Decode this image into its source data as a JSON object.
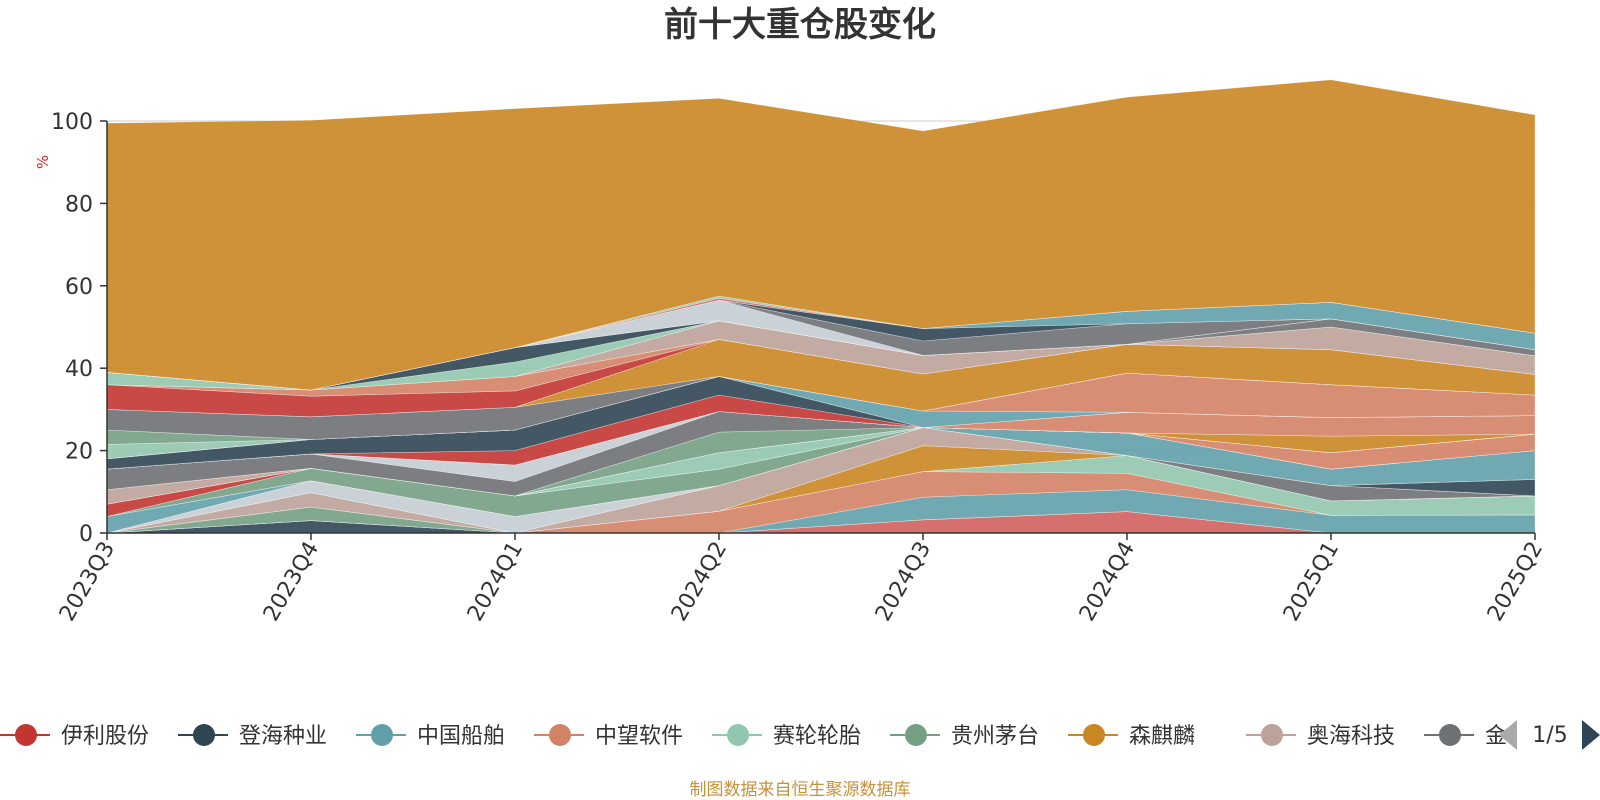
{
  "chart_data": {
    "type": "area",
    "stacked": true,
    "title": "前十大重仓股变化",
    "ylabel": "%",
    "xlabel": "",
    "ylim": [
      0,
      100
    ],
    "yticks": [
      0,
      20,
      40,
      60,
      80,
      100
    ],
    "grid": true,
    "legend_position": "bottom",
    "categories": [
      "2023Q3",
      "2023Q4",
      "2024Q1",
      "2024Q2",
      "2024Q3",
      "2024Q4",
      "2025Q1",
      "2025Q2"
    ],
    "series": [
      {
        "name": "伊利股份",
        "color": "#d1605e",
        "values": [
          0,
          0,
          0,
          0,
          3.2,
          5.2,
          0,
          0
        ]
      },
      {
        "name": "登海种业",
        "color": "#2f4554",
        "values": [
          0,
          3.0,
          0,
          0,
          0,
          0,
          0,
          0
        ]
      },
      {
        "name": "中国船舶",
        "color": "#61a0a8",
        "values": [
          0,
          0,
          0,
          0,
          5.5,
          5.3,
          4.3,
          4.4
        ]
      },
      {
        "name": "中望软件",
        "color": "#d48265",
        "values": [
          0,
          0,
          0,
          5.3,
          6.2,
          4.0,
          0,
          0
        ]
      },
      {
        "name": "赛轮轮胎",
        "color": "#91c7ae",
        "values": [
          0,
          0,
          0,
          0,
          0,
          4.3,
          3.5,
          4.6
        ]
      },
      {
        "name": "贵州茅台",
        "color": "#749f83",
        "values": [
          0,
          3.3,
          0,
          0,
          0,
          0,
          0,
          0
        ]
      },
      {
        "name": "森麒麟",
        "color": "#ca8622",
        "values": [
          0,
          0,
          0,
          0,
          6.3,
          0,
          0,
          0
        ]
      },
      {
        "name": "奥海科技",
        "color": "#bda29a",
        "values": [
          0,
          3.5,
          0,
          6.2,
          4.4,
          0,
          0,
          0
        ]
      },
      {
        "name": "金",
        "color": "#6e7074",
        "values": [
          0,
          0,
          0,
          0,
          0,
          0,
          3.7,
          0
        ]
      },
      {
        "color": "#c4ccd3",
        "values": [
          0,
          2.9,
          4.0,
          0,
          0,
          0,
          0,
          0
        ]
      },
      {
        "color": "#2f4554",
        "values": [
          0,
          0,
          0,
          0,
          0,
          0,
          0,
          4.0
        ]
      },
      {
        "color": "#61a0a8",
        "values": [
          4.0,
          0,
          0,
          0,
          0,
          0,
          0,
          0
        ]
      },
      {
        "color": "#61a0a8",
        "values": [
          0,
          0,
          0,
          0,
          0,
          5.5,
          4.0,
          7.0
        ]
      },
      {
        "color": "#749f83",
        "values": [
          0,
          3.0,
          5.0,
          4.0,
          0,
          0,
          0,
          0
        ]
      },
      {
        "color": "#c23531",
        "values": [
          3.0,
          0,
          0,
          0,
          0,
          0,
          0,
          0
        ]
      },
      {
        "color": "#91c7ae",
        "values": [
          0,
          0,
          0,
          4.0,
          0,
          0,
          0,
          0
        ]
      },
      {
        "color": "#d48265",
        "values": [
          0,
          0,
          0,
          0,
          0,
          0,
          4.0,
          4.0
        ]
      },
      {
        "color": "#bda29a",
        "values": [
          3.5,
          0,
          0,
          0,
          0,
          0,
          0,
          0
        ]
      },
      {
        "color": "#749f83",
        "values": [
          0,
          0,
          0,
          5.0,
          0,
          0,
          0,
          0
        ]
      },
      {
        "color": "#6e7074",
        "values": [
          5.0,
          3.5,
          3.5,
          5.0,
          0,
          0,
          0,
          0
        ]
      },
      {
        "color": "#c4ccd3",
        "values": [
          0,
          0,
          4.0,
          0,
          0,
          0,
          0,
          0
        ]
      },
      {
        "color": "#ca8622",
        "values": [
          0,
          0,
          0,
          0,
          0,
          0,
          4.0,
          0
        ]
      },
      {
        "color": "#d48265",
        "values": [
          0,
          0,
          0,
          0,
          0,
          5.0,
          4.5,
          4.5
        ]
      },
      {
        "color": "#c23531",
        "values": [
          0,
          0,
          3.5,
          4.0,
          0,
          0,
          0,
          0
        ]
      },
      {
        "color": "#2f4554",
        "values": [
          2.5,
          3.5,
          5.0,
          4.5,
          0,
          0,
          0,
          0
        ]
      },
      {
        "color": "#61a0a8",
        "values": [
          0,
          0,
          0,
          0,
          4.0,
          0,
          0,
          0
        ]
      },
      {
        "color": "#d48265",
        "values": [
          0,
          0,
          0,
          0,
          0,
          9.5,
          8.0,
          5.0
        ]
      },
      {
        "color": "#91c7ae",
        "values": [
          3.5,
          0,
          0,
          0,
          0,
          0,
          0,
          0
        ]
      },
      {
        "color": "#749f83",
        "values": [
          3.5,
          0,
          0,
          0,
          0,
          0,
          0,
          0
        ]
      },
      {
        "color": "#6e7074",
        "values": [
          5.0,
          5.5,
          5.5,
          0,
          0,
          0,
          0,
          0
        ]
      },
      {
        "color": "#ca8622",
        "values": [
          0,
          0,
          0,
          9.0,
          9.0,
          7.0,
          8.5,
          5.0
        ]
      },
      {
        "color": "#c23531",
        "values": [
          6.0,
          5.0,
          4.0,
          0,
          0,
          0,
          0,
          0
        ]
      },
      {
        "color": "#d48265",
        "values": [
          0,
          1.5,
          3.5,
          0,
          0,
          0,
          0,
          0
        ]
      },
      {
        "color": "#bda29a",
        "values": [
          0,
          0,
          0,
          4.5,
          4.5,
          0,
          5.5,
          4.5
        ]
      },
      {
        "color": "#91c7ae",
        "values": [
          3.0,
          0,
          3.5,
          0,
          0,
          0,
          0,
          0
        ]
      },
      {
        "color": "#2f4554",
        "values": [
          0,
          0,
          3.5,
          0,
          0,
          0,
          0,
          0
        ]
      },
      {
        "color": "#6e7074",
        "values": [
          0,
          0,
          0,
          0,
          0,
          0,
          2.0,
          1.5
        ]
      },
      {
        "color": "#c4ccd3",
        "values": [
          0,
          0,
          0,
          5.0,
          0,
          0,
          0,
          0
        ]
      },
      {
        "color": "#6e7074",
        "values": [
          0,
          0,
          0,
          0,
          3.5,
          5.0,
          0,
          0
        ]
      },
      {
        "color": "#2f4554",
        "values": [
          0,
          0,
          0,
          0,
          3.0,
          0,
          0,
          0
        ]
      },
      {
        "color": "#61a0a8",
        "values": [
          0,
          0,
          0,
          0,
          0,
          3.0,
          4.0,
          4.0
        ]
      },
      {
        "color": "#d1605e",
        "values": [
          0,
          0,
          0,
          0.5,
          0,
          0,
          0,
          0
        ]
      },
      {
        "color": "#91c7ae",
        "values": [
          0,
          0,
          0,
          0.5,
          0,
          0,
          0,
          0
        ]
      },
      {
        "color": "#ca8622",
        "values": [
          60.5,
          65.5,
          58.0,
          48.0,
          48.0,
          52.0,
          54.0,
          53.0
        ]
      }
    ]
  },
  "legend": {
    "items": [
      {
        "name": "伊利股份",
        "color": "#c23531"
      },
      {
        "name": "登海种业",
        "color": "#2f4554"
      },
      {
        "name": "中国船舶",
        "color": "#61a0a8"
      },
      {
        "name": "中望软件",
        "color": "#d48265"
      },
      {
        "name": "赛轮轮胎",
        "color": "#91c7ae"
      },
      {
        "name": "贵州茅台",
        "color": "#749f83"
      },
      {
        "name": "森麒麟",
        "color": "#ca8622"
      },
      {
        "name": "奥海科技",
        "color": "#bda29a"
      },
      {
        "name": "金",
        "color": "#6e7074"
      }
    ],
    "page_label": "1/5"
  },
  "source_text": "制图数据来自恒生聚源数据库",
  "colors": {
    "unit_label": "#e0232a",
    "source_text": "#c8913a",
    "axis": "#333333",
    "grid": "#cccccc",
    "pager_prev_disabled": "#aaaaaa",
    "pager_next_active": "#2f4554"
  }
}
